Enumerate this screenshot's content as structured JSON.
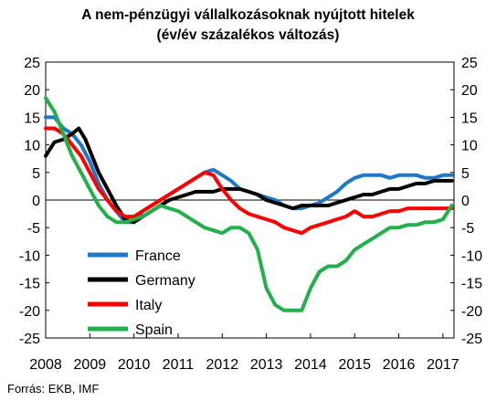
{
  "title_line1": "A nem-pénzügyi vállalkozásoknak nyújtott hitelek",
  "title_line2": "(év/év százalékos változás)",
  "source": "Forrás: EKB, IMF",
  "chart_data": {
    "type": "line",
    "ylim": [
      -25,
      25
    ],
    "yticks": [
      "25",
      "20",
      "15",
      "10",
      "5",
      "0",
      "-5",
      "-10",
      "-15",
      "-20",
      "-25"
    ],
    "xlim": [
      2008.0,
      2017.25
    ],
    "xticks": [
      "2008",
      "2009",
      "2010",
      "2011",
      "2012",
      "2013",
      "2014",
      "2015",
      "2016",
      "2017"
    ],
    "grid": false,
    "legend_position": "bottom-left",
    "zero_line": true,
    "series": [
      {
        "name": "France",
        "color": "#1f77c8",
        "points": [
          [
            2008.0,
            15
          ],
          [
            2008.2,
            15
          ],
          [
            2008.4,
            13
          ],
          [
            2008.6,
            12
          ],
          [
            2008.8,
            10
          ],
          [
            2009.0,
            7
          ],
          [
            2009.2,
            3
          ],
          [
            2009.4,
            0
          ],
          [
            2009.6,
            -2
          ],
          [
            2009.8,
            -4
          ],
          [
            2010.0,
            -4
          ],
          [
            2010.2,
            -2
          ],
          [
            2010.4,
            -1
          ],
          [
            2010.6,
            0
          ],
          [
            2010.8,
            1
          ],
          [
            2011.0,
            2
          ],
          [
            2011.2,
            3
          ],
          [
            2011.4,
            4
          ],
          [
            2011.6,
            5
          ],
          [
            2011.8,
            5.5
          ],
          [
            2012.0,
            4.5
          ],
          [
            2012.2,
            3.5
          ],
          [
            2012.4,
            2
          ],
          [
            2012.6,
            1.5
          ],
          [
            2012.8,
            1
          ],
          [
            2013.0,
            0.5
          ],
          [
            2013.2,
            0
          ],
          [
            2013.4,
            -1
          ],
          [
            2013.6,
            -1.5
          ],
          [
            2013.8,
            -1.5
          ],
          [
            2014.0,
            -1
          ],
          [
            2014.2,
            -0.5
          ],
          [
            2014.4,
            0.5
          ],
          [
            2014.6,
            1.5
          ],
          [
            2014.8,
            3
          ],
          [
            2015.0,
            4
          ],
          [
            2015.2,
            4.5
          ],
          [
            2015.4,
            4.5
          ],
          [
            2015.6,
            4.5
          ],
          [
            2015.8,
            4
          ],
          [
            2016.0,
            4.5
          ],
          [
            2016.2,
            4.5
          ],
          [
            2016.4,
            4.5
          ],
          [
            2016.6,
            4
          ],
          [
            2016.8,
            4
          ],
          [
            2017.0,
            4.5
          ],
          [
            2017.2,
            4.5
          ]
        ]
      },
      {
        "name": "Germany",
        "color": "#000000",
        "points": [
          [
            2008.0,
            8
          ],
          [
            2008.2,
            10.5
          ],
          [
            2008.4,
            11
          ],
          [
            2008.6,
            12
          ],
          [
            2008.75,
            13
          ],
          [
            2008.9,
            11
          ],
          [
            2009.0,
            9
          ],
          [
            2009.2,
            5
          ],
          [
            2009.4,
            2
          ],
          [
            2009.6,
            -1
          ],
          [
            2009.8,
            -3.5
          ],
          [
            2010.0,
            -4
          ],
          [
            2010.2,
            -3
          ],
          [
            2010.4,
            -2
          ],
          [
            2010.6,
            -1
          ],
          [
            2010.8,
            0
          ],
          [
            2011.0,
            0.5
          ],
          [
            2011.2,
            1
          ],
          [
            2011.4,
            1.5
          ],
          [
            2011.6,
            1.5
          ],
          [
            2011.8,
            1.5
          ],
          [
            2012.0,
            2
          ],
          [
            2012.2,
            2
          ],
          [
            2012.4,
            2
          ],
          [
            2012.6,
            1.5
          ],
          [
            2012.8,
            1
          ],
          [
            2013.0,
            0
          ],
          [
            2013.2,
            -0.5
          ],
          [
            2013.4,
            -1
          ],
          [
            2013.6,
            -1.5
          ],
          [
            2013.8,
            -1
          ],
          [
            2014.0,
            -1
          ],
          [
            2014.2,
            -1
          ],
          [
            2014.4,
            -1
          ],
          [
            2014.6,
            -0.5
          ],
          [
            2014.8,
            0
          ],
          [
            2015.0,
            0.5
          ],
          [
            2015.2,
            1
          ],
          [
            2015.4,
            1
          ],
          [
            2015.6,
            1.5
          ],
          [
            2015.8,
            2
          ],
          [
            2016.0,
            2
          ],
          [
            2016.2,
            2.5
          ],
          [
            2016.4,
            3
          ],
          [
            2016.6,
            3
          ],
          [
            2016.8,
            3.5
          ],
          [
            2017.0,
            3.5
          ],
          [
            2017.2,
            3.5
          ]
        ]
      },
      {
        "name": "Italy",
        "color": "#ff0000",
        "points": [
          [
            2008.0,
            13
          ],
          [
            2008.2,
            13
          ],
          [
            2008.4,
            12
          ],
          [
            2008.6,
            10
          ],
          [
            2008.8,
            8
          ],
          [
            2009.0,
            5
          ],
          [
            2009.2,
            2
          ],
          [
            2009.4,
            0
          ],
          [
            2009.6,
            -2
          ],
          [
            2009.8,
            -3
          ],
          [
            2010.0,
            -3
          ],
          [
            2010.2,
            -2
          ],
          [
            2010.4,
            -1
          ],
          [
            2010.6,
            0
          ],
          [
            2010.8,
            1
          ],
          [
            2011.0,
            2
          ],
          [
            2011.2,
            3
          ],
          [
            2011.4,
            4
          ],
          [
            2011.6,
            5
          ],
          [
            2011.8,
            4.5
          ],
          [
            2012.0,
            2
          ],
          [
            2012.2,
            0
          ],
          [
            2012.4,
            -1.5
          ],
          [
            2012.6,
            -2.5
          ],
          [
            2012.8,
            -3
          ],
          [
            2013.0,
            -3.5
          ],
          [
            2013.2,
            -4
          ],
          [
            2013.4,
            -5
          ],
          [
            2013.6,
            -5.5
          ],
          [
            2013.8,
            -6
          ],
          [
            2014.0,
            -5
          ],
          [
            2014.2,
            -4.5
          ],
          [
            2014.4,
            -4
          ],
          [
            2014.6,
            -3.5
          ],
          [
            2014.8,
            -3
          ],
          [
            2015.0,
            -2
          ],
          [
            2015.2,
            -3
          ],
          [
            2015.4,
            -3
          ],
          [
            2015.6,
            -2.5
          ],
          [
            2015.8,
            -2
          ],
          [
            2016.0,
            -2
          ],
          [
            2016.2,
            -1.5
          ],
          [
            2016.4,
            -1.5
          ],
          [
            2016.6,
            -1.5
          ],
          [
            2016.8,
            -1.5
          ],
          [
            2017.0,
            -1.5
          ],
          [
            2017.2,
            -1.5
          ]
        ]
      },
      {
        "name": "Spain",
        "color": "#22b04b",
        "points": [
          [
            2008.0,
            18.5
          ],
          [
            2008.2,
            16
          ],
          [
            2008.4,
            12
          ],
          [
            2008.6,
            8
          ],
          [
            2008.8,
            5
          ],
          [
            2009.0,
            2
          ],
          [
            2009.2,
            -1
          ],
          [
            2009.4,
            -3
          ],
          [
            2009.6,
            -4
          ],
          [
            2009.8,
            -4
          ],
          [
            2010.0,
            -3.5
          ],
          [
            2010.2,
            -3
          ],
          [
            2010.4,
            -2
          ],
          [
            2010.6,
            -1
          ],
          [
            2010.8,
            -1.5
          ],
          [
            2011.0,
            -2
          ],
          [
            2011.2,
            -3
          ],
          [
            2011.4,
            -4
          ],
          [
            2011.6,
            -5
          ],
          [
            2011.8,
            -5.5
          ],
          [
            2012.0,
            -6
          ],
          [
            2012.2,
            -5
          ],
          [
            2012.4,
            -5
          ],
          [
            2012.6,
            -6
          ],
          [
            2012.8,
            -9
          ],
          [
            2013.0,
            -16
          ],
          [
            2013.2,
            -19
          ],
          [
            2013.4,
            -20
          ],
          [
            2013.6,
            -20
          ],
          [
            2013.8,
            -20
          ],
          [
            2014.0,
            -16
          ],
          [
            2014.2,
            -13
          ],
          [
            2014.4,
            -12
          ],
          [
            2014.6,
            -12
          ],
          [
            2014.8,
            -11
          ],
          [
            2015.0,
            -9
          ],
          [
            2015.2,
            -8
          ],
          [
            2015.4,
            -7
          ],
          [
            2015.6,
            -6
          ],
          [
            2015.8,
            -5
          ],
          [
            2016.0,
            -5
          ],
          [
            2016.2,
            -4.5
          ],
          [
            2016.4,
            -4.5
          ],
          [
            2016.6,
            -4
          ],
          [
            2016.8,
            -4
          ],
          [
            2017.0,
            -3.5
          ],
          [
            2017.2,
            -1
          ]
        ]
      }
    ]
  }
}
